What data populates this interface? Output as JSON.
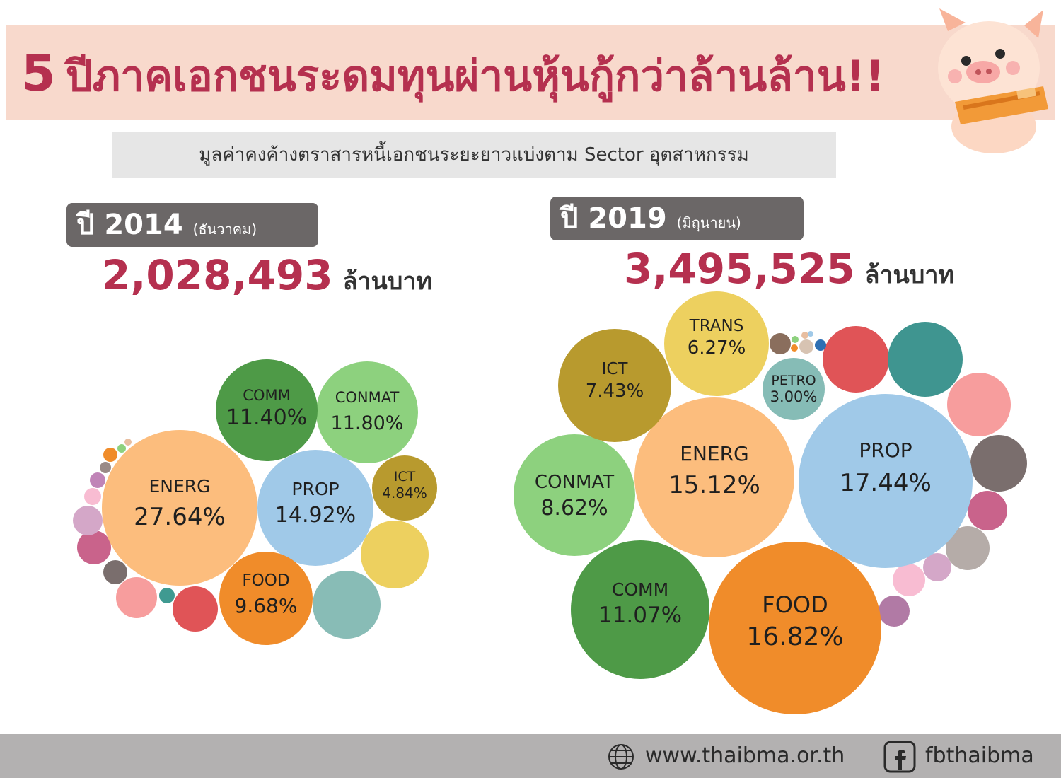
{
  "header": {
    "title_num": "5",
    "title_part1": "ปีภาคเอกชนระดมทุน",
    "title_part2": "ผ่านหุ้นกู้กว่าล้านล้าน!!",
    "subtitle": "มูลค่าคงค้างตราสารหนี้เอกชนระยะยาวแบ่งตาม Sector อุตสาหกรรม"
  },
  "chart_data": [
    {
      "type": "bubble",
      "year_label": "ปี 2014",
      "month_label": "(ธันวาคม)",
      "total_value": "2,028,493",
      "total_unit": "ล้านบาท",
      "labeled_sectors": [
        {
          "name": "ENERG",
          "pct_label": "27.64%",
          "value": 27.64
        },
        {
          "name": "PROP",
          "pct_label": "14.92%",
          "value": 14.92
        },
        {
          "name": "CONMAT",
          "pct_label": "11.80%",
          "value": 11.8
        },
        {
          "name": "COMM",
          "pct_label": "11.40%",
          "value": 11.4
        },
        {
          "name": "FOOD",
          "pct_label": "9.68%",
          "value": 9.68
        },
        {
          "name": "ICT",
          "pct_label": "4.84%",
          "value": 4.84
        }
      ]
    },
    {
      "type": "bubble",
      "year_label": "ปี 2019",
      "month_label": "(มิถุนายน)",
      "total_value": "3,495,525",
      "total_unit": "ล้านบาท",
      "labeled_sectors": [
        {
          "name": "PROP",
          "pct_label": "17.44%",
          "value": 17.44
        },
        {
          "name": "FOOD",
          "pct_label": "16.82%",
          "value": 16.82
        },
        {
          "name": "ENERG",
          "pct_label": "15.12%",
          "value": 15.12
        },
        {
          "name": "COMM",
          "pct_label": "11.07%",
          "value": 11.07
        },
        {
          "name": "CONMAT",
          "pct_label": "8.62%",
          "value": 8.62
        },
        {
          "name": "ICT",
          "pct_label": "7.43%",
          "value": 7.43
        },
        {
          "name": "TRANS",
          "pct_label": "6.27%",
          "value": 6.27
        },
        {
          "name": "PETRO",
          "pct_label": "3.00%",
          "value": 3.0
        }
      ]
    }
  ],
  "colors": {
    "ENERG": "#fcbd7d",
    "PROP": "#a0c9e8",
    "CONMAT": "#8dd17e",
    "COMM": "#4e9a47",
    "FOOD": "#f08c2a",
    "ICT": "#b89a2e",
    "TRANS": "#edd05f",
    "PETRO": "#86bcb6",
    "accent": "#b5304f"
  },
  "footer": {
    "website": "www.thaibma.or.th",
    "facebook": "fbthaibma",
    "globe_icon": "globe-icon",
    "facebook_icon": "facebook-icon"
  }
}
